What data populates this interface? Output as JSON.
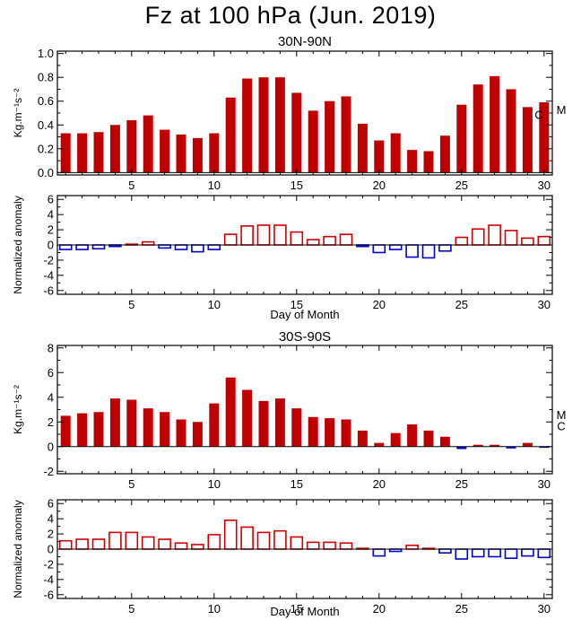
{
  "title": "Fz at 100 hPa (Jun. 2019)",
  "chart_data": [
    {
      "type": "bar",
      "subtitle": "30N-90N",
      "ylabel": "Kg.m⁻¹s⁻²",
      "x": [
        1,
        2,
        3,
        4,
        5,
        6,
        7,
        8,
        9,
        10,
        11,
        12,
        13,
        14,
        15,
        16,
        17,
        18,
        19,
        20,
        21,
        22,
        23,
        24,
        25,
        26,
        27,
        28,
        29,
        30
      ],
      "values": [
        0.33,
        0.33,
        0.34,
        0.4,
        0.44,
        0.48,
        0.36,
        0.32,
        0.29,
        0.33,
        0.63,
        0.79,
        0.8,
        0.8,
        0.67,
        0.52,
        0.6,
        0.64,
        0.41,
        0.27,
        0.33,
        0.19,
        0.18,
        0.31,
        0.57,
        0.74,
        0.81,
        0.7,
        0.55,
        0.59
      ],
      "xlim": [
        0.5,
        30.5
      ],
      "ylim": [
        -0.02,
        1.02
      ],
      "xticks": [
        5,
        10,
        15,
        20,
        25,
        30
      ],
      "yticks": [
        0.0,
        0.2,
        0.4,
        0.6,
        0.8,
        1.0
      ],
      "ytick_labels": [
        "0.0",
        "0.2",
        "0.4",
        "0.6",
        "0.8",
        "1.0"
      ],
      "bar_color": "#c00000",
      "markers": [
        {
          "label": "C",
          "value": 0.49
        },
        {
          "label": "M",
          "value": 0.53
        }
      ]
    },
    {
      "type": "bar",
      "ylabel": "Normalized anomaly",
      "xlabel": "Day of Month",
      "x": [
        1,
        2,
        3,
        4,
        5,
        6,
        7,
        8,
        9,
        10,
        11,
        12,
        13,
        14,
        15,
        16,
        17,
        18,
        19,
        20,
        21,
        22,
        23,
        24,
        25,
        26,
        27,
        28,
        29,
        30
      ],
      "values": [
        -0.6,
        -0.6,
        -0.5,
        -0.2,
        0.1,
        0.4,
        -0.4,
        -0.6,
        -0.9,
        -0.6,
        1.4,
        2.5,
        2.6,
        2.6,
        1.7,
        0.7,
        1.1,
        1.4,
        -0.2,
        -1.0,
        -0.6,
        -1.6,
        -1.7,
        -0.8,
        1.0,
        2.1,
        2.6,
        1.9,
        0.9,
        1.1
      ],
      "xlim": [
        0.5,
        30.5
      ],
      "ylim": [
        -6.5,
        6.5
      ],
      "xticks": [
        5,
        10,
        15,
        20,
        25,
        30
      ],
      "yticks": [
        -6,
        -4,
        -2,
        0,
        2,
        4,
        6
      ],
      "ytick_labels": [
        "-6",
        "-4",
        "-2",
        "0",
        "2",
        "4",
        "6"
      ],
      "positive_color": "#d00000",
      "negative_color": "#0000cc"
    },
    {
      "type": "bar",
      "subtitle": "30S-90S",
      "ylabel": "Kg.m⁻¹s⁻²",
      "x": [
        1,
        2,
        3,
        4,
        5,
        6,
        7,
        8,
        9,
        10,
        11,
        12,
        13,
        14,
        15,
        16,
        17,
        18,
        19,
        20,
        21,
        22,
        23,
        24,
        25,
        26,
        27,
        28,
        29,
        30
      ],
      "values": [
        2.5,
        2.7,
        2.8,
        3.9,
        3.8,
        3.1,
        2.8,
        2.2,
        2.0,
        3.5,
        5.6,
        4.6,
        3.7,
        3.9,
        3.1,
        2.4,
        2.3,
        2.2,
        1.3,
        0.3,
        1.1,
        1.8,
        1.3,
        0.8,
        -0.2,
        0.15,
        0.15,
        -0.15,
        0.3,
        -0.1
      ],
      "xlim": [
        0.5,
        30.5
      ],
      "ylim": [
        -2.2,
        8.2
      ],
      "xticks": [
        5,
        10,
        15,
        20,
        25,
        30
      ],
      "yticks": [
        -2,
        0,
        2,
        4,
        6,
        8
      ],
      "ytick_labels": [
        "-2",
        "0",
        "2",
        "4",
        "6",
        "8"
      ],
      "positive_color": "#c00000",
      "negative_color": "#0000cc",
      "markers": [
        {
          "label": "M",
          "value": 2.6
        },
        {
          "label": "C",
          "value": 1.7
        }
      ]
    },
    {
      "type": "bar",
      "ylabel": "Normalized anomaly",
      "xlabel": "Day of Month",
      "x": [
        1,
        2,
        3,
        4,
        5,
        6,
        7,
        8,
        9,
        10,
        11,
        12,
        13,
        14,
        15,
        16,
        17,
        18,
        19,
        20,
        21,
        22,
        23,
        24,
        25,
        26,
        27,
        28,
        29,
        30
      ],
      "values": [
        1.1,
        1.3,
        1.3,
        2.2,
        2.2,
        1.6,
        1.3,
        0.8,
        0.6,
        1.9,
        3.8,
        2.9,
        2.2,
        2.4,
        1.6,
        0.9,
        0.9,
        0.8,
        0.1,
        -0.9,
        -0.3,
        0.5,
        0.1,
        -0.5,
        -1.3,
        -1.0,
        -1.0,
        -1.2,
        -0.9,
        -1.1
      ],
      "xlim": [
        0.5,
        30.5
      ],
      "ylim": [
        -6.5,
        6.5
      ],
      "xticks": [
        5,
        10,
        15,
        20,
        25,
        30
      ],
      "yticks": [
        -6,
        -4,
        -2,
        0,
        2,
        4,
        6
      ],
      "ytick_labels": [
        "-6",
        "-4",
        "-2",
        "0",
        "2",
        "4",
        "6"
      ],
      "positive_color": "#d00000",
      "negative_color": "#0000cc"
    }
  ]
}
